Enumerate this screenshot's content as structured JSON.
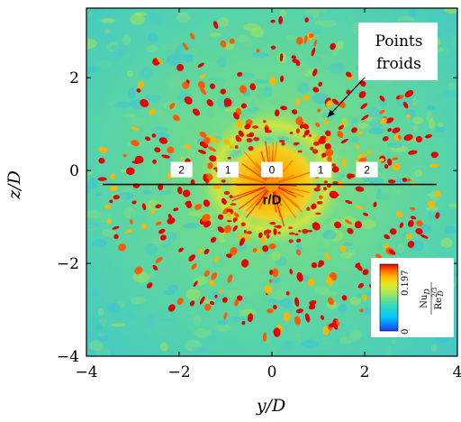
{
  "chart_data": {
    "type": "heatmap",
    "title": "",
    "xlabel": "y/D",
    "ylabel": "z/D",
    "xlim": [
      -4,
      4
    ],
    "ylim": [
      -4,
      3.5
    ],
    "x_ticks": [
      -4,
      -2,
      0,
      2,
      4
    ],
    "y_ticks": [
      -4,
      -2,
      0,
      2
    ],
    "x_tick_labels": [
      "−4",
      "−2",
      "0",
      "2",
      "4"
    ],
    "y_tick_labels": [
      "−4",
      "−2",
      "0",
      "2"
    ],
    "colormap": [
      "#1a3cff",
      "#00c8ff",
      "#3cdcb4",
      "#9be664",
      "#e8e82a",
      "#ffb400",
      "#ff5a00",
      "#e60000"
    ],
    "colorbar": {
      "min": 0,
      "max": 0.197,
      "min_label": "0",
      "max_label": "0.197",
      "label_num": "Nu",
      "label_num_sub": "D",
      "label_den": "Re",
      "label_den_sup": "2/3",
      "label_den_sub": "D"
    },
    "radial_markers": {
      "z": -0.3,
      "line_from_y": -3.65,
      "line_to_y": 3.55,
      "labels": [
        {
          "y": -1.95,
          "text": "2"
        },
        {
          "y": -0.95,
          "text": "1"
        },
        {
          "y": 0.0,
          "text": "0"
        },
        {
          "y": 1.05,
          "text": "1"
        },
        {
          "y": 2.05,
          "text": "2"
        }
      ],
      "axis_label": "r/D"
    },
    "annotation": {
      "text_line1": "Points",
      "text_line2": "froids",
      "arrow_to_y": 1.2,
      "arrow_to_z": 1.15
    }
  }
}
